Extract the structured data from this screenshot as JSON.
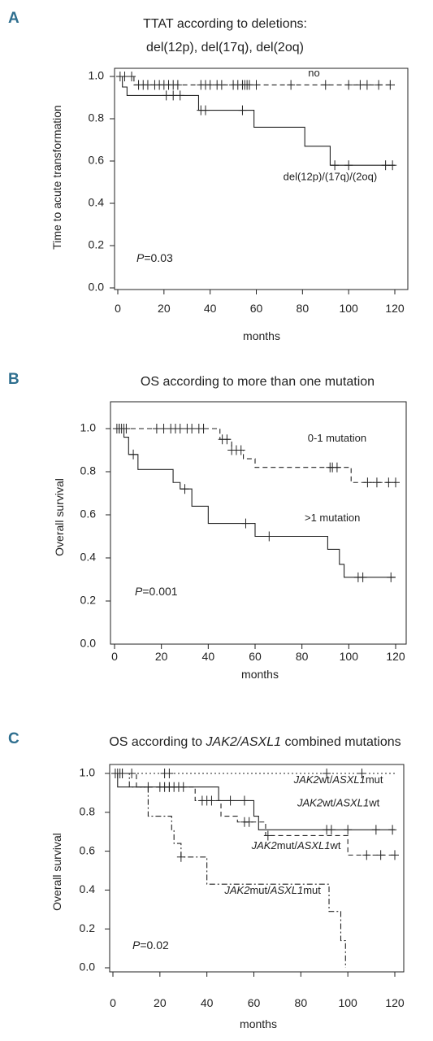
{
  "chart_data": [
    {
      "type": "line",
      "panel": "A",
      "title_lines": [
        "TTAT according to deletions:",
        "del(12p), del(17q), del(2oq)"
      ],
      "xlabel": "months",
      "ylabel": "Time to acute transformation",
      "xlim": [
        0,
        120
      ],
      "ylim": [
        0,
        1.0
      ],
      "x_ticks": [
        0,
        20,
        40,
        60,
        80,
        100,
        120
      ],
      "y_ticks": [
        0.0,
        0.2,
        0.4,
        0.6,
        0.8,
        1.0
      ],
      "p_prefix": "P",
      "p_value": "=0.03",
      "series": [
        {
          "name": "no",
          "dash": "6,4",
          "label_at": [
            85,
            1.0
          ],
          "steps": [
            [
              0,
              1.0
            ],
            [
              7,
              0.96
            ],
            [
              120,
              0.96
            ]
          ],
          "censor": [
            1,
            3,
            6,
            9,
            11,
            13,
            16,
            18,
            20,
            22,
            24,
            26,
            36,
            38,
            40,
            43,
            45,
            50,
            52,
            54,
            55,
            56,
            57,
            60,
            75,
            90,
            100,
            105,
            108,
            113,
            118
          ]
        },
        {
          "name": "del(12p)/(17q)/(2oq)",
          "dash": "",
          "label_at": [
            92,
            0.51
          ],
          "steps": [
            [
              0,
              1.0
            ],
            [
              2,
              0.95
            ],
            [
              4,
              0.91
            ],
            [
              35,
              0.84
            ],
            [
              59,
              0.76
            ],
            [
              81,
              0.67
            ],
            [
              92,
              0.58
            ],
            [
              120,
              0.58
            ]
          ],
          "censor": [
            21,
            24,
            27,
            36,
            38,
            54,
            94,
            100,
            116,
            119
          ]
        }
      ]
    },
    {
      "type": "line",
      "panel": "B",
      "title_lines": [
        "OS according to more than one mutation"
      ],
      "xlabel": "months",
      "ylabel": "Overall survival",
      "xlim": [
        0,
        120
      ],
      "ylim": [
        0,
        1.0
      ],
      "x_ticks": [
        0,
        20,
        40,
        60,
        80,
        100,
        120
      ],
      "y_ticks": [
        0.2,
        0.4,
        0.6,
        0.8,
        1.0
      ],
      "y_ticks_extra": [
        "0.0"
      ],
      "p_prefix": "P",
      "p_value": "=0.001",
      "series": [
        {
          "name": "0-1 mutation",
          "dash": "6,4",
          "label_at": [
            95,
            0.94
          ],
          "steps": [
            [
              0,
              1.0
            ],
            [
              45,
              0.95
            ],
            [
              50,
              0.9
            ],
            [
              55,
              0.86
            ],
            [
              60,
              0.82
            ],
            [
              101,
              0.75
            ],
            [
              120,
              0.75
            ]
          ],
          "censor": [
            1,
            2,
            3,
            4,
            5,
            18,
            21,
            24,
            26,
            28,
            31,
            33,
            36,
            38,
            46,
            48,
            50,
            52,
            54,
            92,
            93,
            95,
            108,
            112,
            117,
            120
          ]
        },
        {
          "name": ">1 mutation",
          "dash": "",
          "label_at": [
            93,
            0.57
          ],
          "steps": [
            [
              0,
              1.0
            ],
            [
              4,
              0.96
            ],
            [
              6,
              0.88
            ],
            [
              10,
              0.81
            ],
            [
              25,
              0.75
            ],
            [
              28,
              0.72
            ],
            [
              33,
              0.64
            ],
            [
              40,
              0.56
            ],
            [
              60,
              0.5
            ],
            [
              91,
              0.44
            ],
            [
              96,
              0.37
            ],
            [
              98,
              0.31
            ],
            [
              120,
              0.31
            ]
          ],
          "censor": [
            2,
            8,
            30,
            56,
            66,
            104,
            106,
            118
          ]
        }
      ]
    },
    {
      "type": "line",
      "panel": "C",
      "title_parts": [
        {
          "text": "OS according to ",
          "italic": false
        },
        {
          "text": "JAK2/ASXL1",
          "italic": true
        },
        {
          "text": " combined mutations",
          "italic": false
        }
      ],
      "xlabel": "months",
      "ylabel": "Overall survival",
      "xlim": [
        0,
        120
      ],
      "ylim": [
        0,
        1.0
      ],
      "x_ticks": [
        0,
        20,
        40,
        60,
        80,
        100,
        120
      ],
      "y_ticks": [
        0.0,
        0.2,
        0.4,
        0.6,
        0.8,
        1.0
      ],
      "p_prefix": "P",
      "p_value": "=0.02",
      "series": [
        {
          "name": "JAK2wt/ASXL1mut",
          "name_parts": [
            {
              "text": "JAK2",
              "italic": true
            },
            {
              "text": "wt/",
              "italic": false
            },
            {
              "text": "ASXL1",
              "italic": true
            },
            {
              "text": "mut",
              "italic": false
            }
          ],
          "dash": "2,3",
          "label_at": [
            96,
            0.95
          ],
          "steps": [
            [
              0,
              1.0
            ],
            [
              120,
              1.0
            ]
          ],
          "censor": [
            2,
            3,
            4,
            8,
            22,
            24,
            91,
            106
          ]
        },
        {
          "name": "JAK2wt/ASXL1wt",
          "name_parts": [
            {
              "text": "JAK2",
              "italic": true
            },
            {
              "text": "wt/",
              "italic": false
            },
            {
              "text": "ASXL1",
              "italic": true
            },
            {
              "text": "wt",
              "italic": false
            }
          ],
          "dash": "",
          "label_at": [
            96,
            0.83
          ],
          "steps": [
            [
              0,
              1.0
            ],
            [
              2,
              0.93
            ],
            [
              45,
              0.86
            ],
            [
              60,
              0.78
            ],
            [
              62,
              0.71
            ],
            [
              120,
              0.71
            ]
          ],
          "censor": [
            1,
            15,
            20,
            22,
            24,
            26,
            30,
            50,
            56,
            91,
            93,
            100,
            112,
            119
          ]
        },
        {
          "name": "JAK2mut/ASXL1wt",
          "name_parts": [
            {
              "text": "JAK2",
              "italic": true
            },
            {
              "text": "mut/",
              "italic": false
            },
            {
              "text": "ASXL1",
              "italic": true
            },
            {
              "text": "wt",
              "italic": false
            }
          ],
          "dash": "6,4",
          "label_at": [
            78,
            0.61
          ],
          "steps": [
            [
              0,
              1.0
            ],
            [
              10,
              0.93
            ],
            [
              35,
              0.86
            ],
            [
              46,
              0.78
            ],
            [
              53,
              0.75
            ],
            [
              65,
              0.68
            ],
            [
              100,
              0.58
            ],
            [
              120,
              0.58
            ]
          ],
          "censor": [
            4,
            24,
            28,
            38,
            40,
            42,
            56,
            58,
            66,
            108,
            114,
            120
          ]
        },
        {
          "name": "JAK2mut/ASXL1mut",
          "name_parts": [
            {
              "text": "JAK2",
              "italic": true
            },
            {
              "text": "mut/",
              "italic": false
            },
            {
              "text": "ASXL1",
              "italic": true
            },
            {
              "text": "mut",
              "italic": false
            }
          ],
          "dash": "7,3,2,3",
          "label_at": [
            68,
            0.38
          ],
          "steps": [
            [
              0,
              1.0
            ],
            [
              7,
              0.93
            ],
            [
              15,
              0.78
            ],
            [
              25,
              0.71
            ],
            [
              26,
              0.64
            ],
            [
              29,
              0.57
            ],
            [
              40,
              0.43
            ],
            [
              92,
              0.29
            ],
            [
              97,
              0.14
            ],
            [
              99,
              0.0
            ]
          ],
          "censor": [
            29
          ]
        }
      ]
    }
  ]
}
